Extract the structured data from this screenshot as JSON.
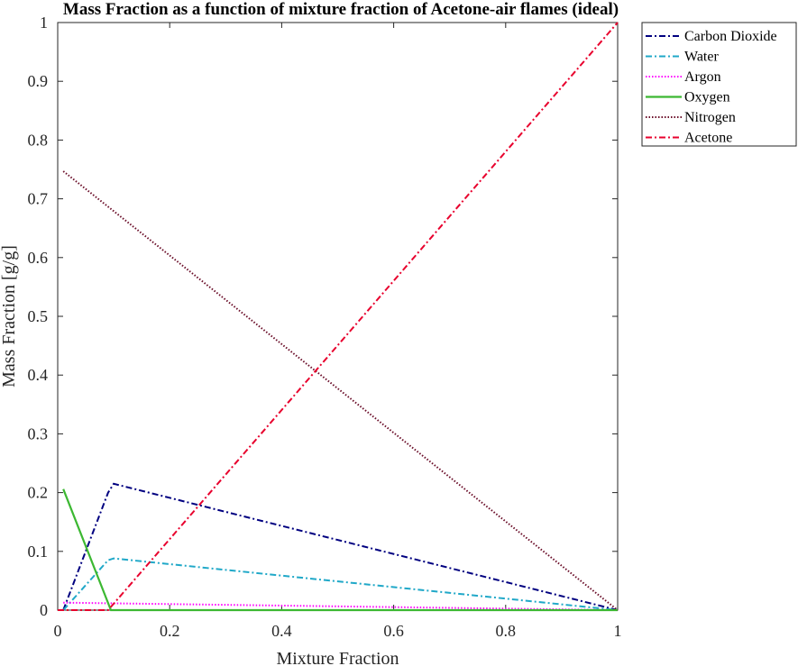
{
  "chart_data": {
    "type": "line",
    "title": "Mass Fraction as a function of mixture fraction of Acetone-air flames (ideal)",
    "xlabel": "Mixture Fraction",
    "ylabel": "Mass Fraction [g/g]",
    "xlim": [
      0,
      1
    ],
    "ylim": [
      0,
      1
    ],
    "xticks": [
      0,
      0.2,
      0.4,
      0.6,
      0.8,
      1
    ],
    "xtick_labels": [
      "0",
      "0.2",
      "0.4",
      "0.6",
      "0.8",
      "1"
    ],
    "yticks": [
      0,
      0.1,
      0.2,
      0.3,
      0.4,
      0.5,
      0.6,
      0.7,
      0.8,
      0.9,
      1
    ],
    "ytick_labels": [
      "0",
      "0.1",
      "0.2",
      "0.3",
      "0.4",
      "0.5",
      "0.6",
      "0.7",
      "0.8",
      "0.9",
      "1"
    ],
    "grid": false,
    "legend_position": "outside-top-right",
    "series": [
      {
        "name": "Carbon Dioxide",
        "color": "#000080",
        "dash": "dashdot",
        "x": [
          0.01,
          0.09,
          0.1,
          1
        ],
        "y": [
          0.0,
          0.2,
          0.215,
          0.0
        ]
      },
      {
        "name": "Water",
        "color": "#20a8c8",
        "dash": "dashdot",
        "x": [
          0.01,
          0.09,
          0.1,
          1
        ],
        "y": [
          0.0,
          0.085,
          0.088,
          0.0
        ]
      },
      {
        "name": "Argon",
        "color": "#ff00ff",
        "dash": "dotted",
        "x": [
          0.01,
          1
        ],
        "y": [
          0.0128,
          0.0
        ]
      },
      {
        "name": "Oxygen",
        "color": "#3cb832",
        "dash": "solid",
        "x": [
          0.01,
          0.095,
          0.1,
          1
        ],
        "y": [
          0.206,
          0.0,
          0.0,
          0.0
        ]
      },
      {
        "name": "Nitrogen",
        "color": "#6b0f2a",
        "dash": "dotted",
        "x": [
          0.01,
          1
        ],
        "y": [
          0.747,
          0.0
        ]
      },
      {
        "name": "Acetone",
        "color": "#e8002d",
        "dash": "dashdot",
        "x": [
          0.0,
          0.09,
          1
        ],
        "y": [
          0.0,
          0.0,
          1.0
        ]
      }
    ]
  }
}
